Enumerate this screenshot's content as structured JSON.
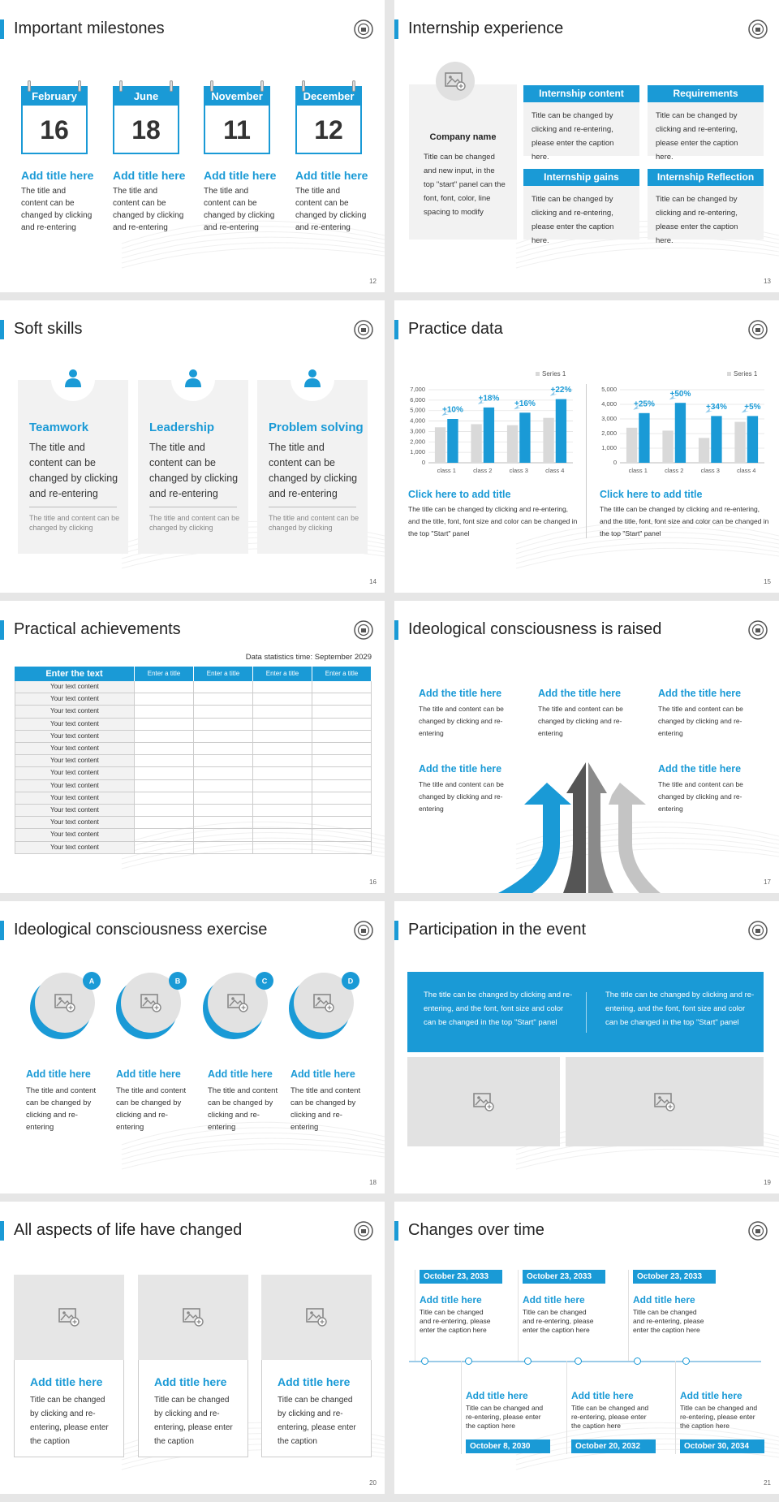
{
  "slides": [
    {
      "title": "Important milestones",
      "page": 12,
      "items": [
        {
          "month": "February",
          "day": 16,
          "heading": "Add title here",
          "text": "The title and content can be changed by clicking and re-entering"
        },
        {
          "month": "June",
          "day": 18,
          "heading": "Add title here",
          "text": "The title and content can be changed by clicking and re-entering"
        },
        {
          "month": "November",
          "day": 11,
          "heading": "Add title here",
          "text": "The title and content can be changed by clicking and re-entering"
        },
        {
          "month": "December",
          "day": 12,
          "heading": "Add title here",
          "text": "The title and content can be changed by clicking and re-entering"
        }
      ]
    },
    {
      "title": "Internship experience",
      "page": 13,
      "company": {
        "name": "Company name",
        "text": "Title can be changed and new input, in the top \"start\" panel can the font, font, color, line spacing to modify"
      },
      "boxes": [
        {
          "heading": "Internship content",
          "text": "Title can be changed by clicking and re-entering, please enter the caption here."
        },
        {
          "heading": "Requirements",
          "text": "Title can be changed by clicking and re-entering, please enter the caption here."
        },
        {
          "heading": "Internship gains",
          "text": "Title can be changed by clicking and re-entering, please enter the caption here."
        },
        {
          "heading": "Internship Reflection",
          "text": "Title can be changed by clicking and re-entering, please enter the caption here."
        }
      ]
    },
    {
      "title": "Soft skills",
      "page": 14,
      "cards": [
        {
          "heading": "Teamwork",
          "text": "The title and content can be changed by clicking and re-entering",
          "note": "The title and content can be changed by clicking"
        },
        {
          "heading": "Leadership",
          "text": "The title and content can be changed by clicking and re-entering",
          "note": "The title and content can be changed by clicking"
        },
        {
          "heading": "Problem solving",
          "text": "The title and content can be changed by clicking and re-entering",
          "note": "The title and content can be changed by clicking"
        }
      ]
    },
    {
      "title": "Practice data",
      "page": 15,
      "charts": [
        {
          "type": "bar",
          "categories": [
            "class 1",
            "class 2",
            "class 3",
            "class 4"
          ],
          "series": [
            {
              "name": "Series 1",
              "color": "#d9d9d9",
              "values": [
                3400,
                3700,
                3600,
                4300
              ]
            },
            {
              "color": "#1a9ad6",
              "values": [
                4200,
                5300,
                4800,
                6100
              ]
            }
          ],
          "annotations": [
            "+10%",
            "+18%",
            "+16%",
            "+22%"
          ],
          "ylim": [
            0,
            7000
          ],
          "yticks": [
            0,
            {
              "value": 1000,
              "label": "1,000"
            },
            {
              "value": 2000,
              "label": "2,000"
            },
            {
              "value": 3000,
              "label": "3,000"
            },
            {
              "value": 4000,
              "label": "4,000"
            },
            {
              "value": 5000,
              "label": "5,000"
            },
            {
              "value": 6000,
              "label": "6,000"
            },
            {
              "value": 7000,
              "label": "7,000"
            }
          ],
          "grid": true,
          "heading": "Click here to add title",
          "text": "The title can be changed by clicking and re-entering, and the title, font, font size and color can be changed in the top \"Start\" panel"
        },
        {
          "type": "bar",
          "categories": [
            "class 1",
            "class 2",
            "class 3",
            "class 4"
          ],
          "series": [
            {
              "name": "Series 1",
              "color": "#d9d9d9",
              "values": [
                2400,
                2200,
                1700,
                2800
              ]
            },
            {
              "color": "#1a9ad6",
              "values": [
                3400,
                4100,
                3200,
                3200
              ]
            }
          ],
          "annotations": [
            "+25%",
            "+50%",
            "+34%",
            "+5%"
          ],
          "ylim": [
            0,
            5000
          ],
          "yticks": [
            0,
            {
              "value": 1000,
              "label": "1,000"
            },
            {
              "value": 2000,
              "label": "2,000"
            },
            {
              "value": 3000,
              "label": "3,000"
            },
            {
              "value": 4000,
              "label": "4,000"
            },
            {
              "value": 5000,
              "label": "5,000"
            }
          ],
          "grid": true,
          "heading": "Click here to add title",
          "text": "The title can be changed by clicking and re-entering, and the title, font, font size and color can be changed in the top \"Start\" panel"
        }
      ]
    },
    {
      "title": "Practical achievements",
      "page": 16,
      "note": "Data statistics time: September 2029",
      "table": {
        "header": [
          "Enter the text",
          "Enter a title",
          "Enter a title",
          "Enter a title",
          "Enter a title"
        ],
        "rows": [
          "Your text content",
          "Your text content",
          "Your text content",
          "Your text content",
          "Your text content",
          "Your text content",
          "Your text content",
          "Your text content",
          "Your text content",
          "Your text content",
          "Your text content",
          "Your text content",
          "Your text content",
          "Your text content"
        ]
      }
    },
    {
      "title": "Ideological consciousness is raised",
      "page": 17,
      "items": [
        {
          "heading": "Add the title here",
          "text": "The title and content can be changed by clicking and re-entering"
        },
        {
          "heading": "Add the title here",
          "text": "The title and content can be changed by clicking and re-entering"
        },
        {
          "heading": "Add the title here",
          "text": "The title and content can be changed by clicking and re-entering"
        },
        {
          "heading": "Add the title here",
          "text": "The title and content can be changed by clicking and re-entering"
        },
        {
          "heading": "Add the title here",
          "text": "The title and content can be changed by clicking and re-entering"
        }
      ]
    },
    {
      "title": "Ideological consciousness exercise",
      "page": 18,
      "items": [
        {
          "badge": "A",
          "heading": "Add title here",
          "text": "The title and content can be changed by clicking and re-entering"
        },
        {
          "badge": "B",
          "heading": "Add title here",
          "text": "The title and content can be changed by clicking and re-entering"
        },
        {
          "badge": "C",
          "heading": "Add title here",
          "text": "The title and content can be changed by clicking and re-entering"
        },
        {
          "badge": "D",
          "heading": "Add title here",
          "text": "The title and content can be changed by clicking and re-entering"
        }
      ]
    },
    {
      "title": "Participation in the event",
      "page": 19,
      "texts": [
        "The title can be changed by clicking and re-entering, and the font, font size and color can be changed in the top \"Start\" panel",
        "The title can be changed by clicking and re-entering, and the font, font size and color can be changed in the top \"Start\" panel"
      ]
    },
    {
      "title": "All aspects of life have changed",
      "page": 20,
      "cards": [
        {
          "heading": "Add title here",
          "text": "Title can be changed by clicking and re-entering, please enter the caption"
        },
        {
          "heading": "Add title here",
          "text": "Title can be changed by clicking and re-entering, please enter the caption"
        },
        {
          "heading": "Add title here",
          "text": "Title can be changed by clicking and re-entering, please enter the caption"
        }
      ]
    },
    {
      "title": "Changes over time",
      "page": 21,
      "top": [
        {
          "date": "October 23, 2033",
          "heading": "Add title here",
          "text": "Title can be changed and re-entering, please enter the caption here"
        },
        {
          "date": "October 23, 2033",
          "heading": "Add title here",
          "text": "Title can be changed and re-entering, please enter the caption here"
        },
        {
          "date": "October 23, 2033",
          "heading": "Add title here",
          "text": "Title can be changed and re-entering, please enter the caption here"
        }
      ],
      "bottom": [
        {
          "date": "October 8, 2030",
          "heading": "Add title here",
          "text": "Title can be changed and re-entering, please enter the caption here"
        },
        {
          "date": "October 20, 2032",
          "heading": "Add title here",
          "text": "Title can be changed and re-entering, please enter the caption here"
        },
        {
          "date": "October 30, 2034",
          "heading": "Add title here",
          "text": "Title can be changed and re-entering, please enter the caption here"
        }
      ]
    }
  ]
}
